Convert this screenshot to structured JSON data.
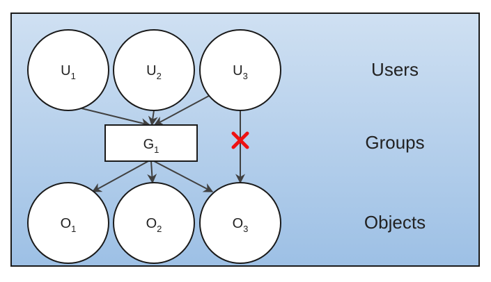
{
  "colors": {
    "panel_top": "#cfe0f2",
    "panel_bottom": "#9dc0e5",
    "panel_border": "#1a1a1a",
    "node_fill": "#ffffff",
    "edge": "#404040",
    "blocked_mark": "#ee1111"
  },
  "users": [
    {
      "id": "U1",
      "base": "U",
      "sub": "1"
    },
    {
      "id": "U2",
      "base": "U",
      "sub": "2"
    },
    {
      "id": "U3",
      "base": "U",
      "sub": "3"
    }
  ],
  "groups": [
    {
      "id": "G1",
      "base": "G",
      "sub": "1"
    }
  ],
  "objects": [
    {
      "id": "O1",
      "base": "O",
      "sub": "1"
    },
    {
      "id": "O2",
      "base": "O",
      "sub": "2"
    },
    {
      "id": "O3",
      "base": "O",
      "sub": "3"
    }
  ],
  "layers": {
    "users": "Users",
    "groups": "Groups",
    "objects": "Objects"
  },
  "edges": [
    {
      "from": "U1",
      "to": "G1"
    },
    {
      "from": "U2",
      "to": "G1"
    },
    {
      "from": "U3",
      "to": "G1"
    },
    {
      "from": "G1",
      "to": "O1"
    },
    {
      "from": "G1",
      "to": "O2"
    },
    {
      "from": "G1",
      "to": "O3"
    },
    {
      "from": "U3",
      "to": "O3",
      "blocked": true
    }
  ],
  "blocked_icon": "cross-icon"
}
